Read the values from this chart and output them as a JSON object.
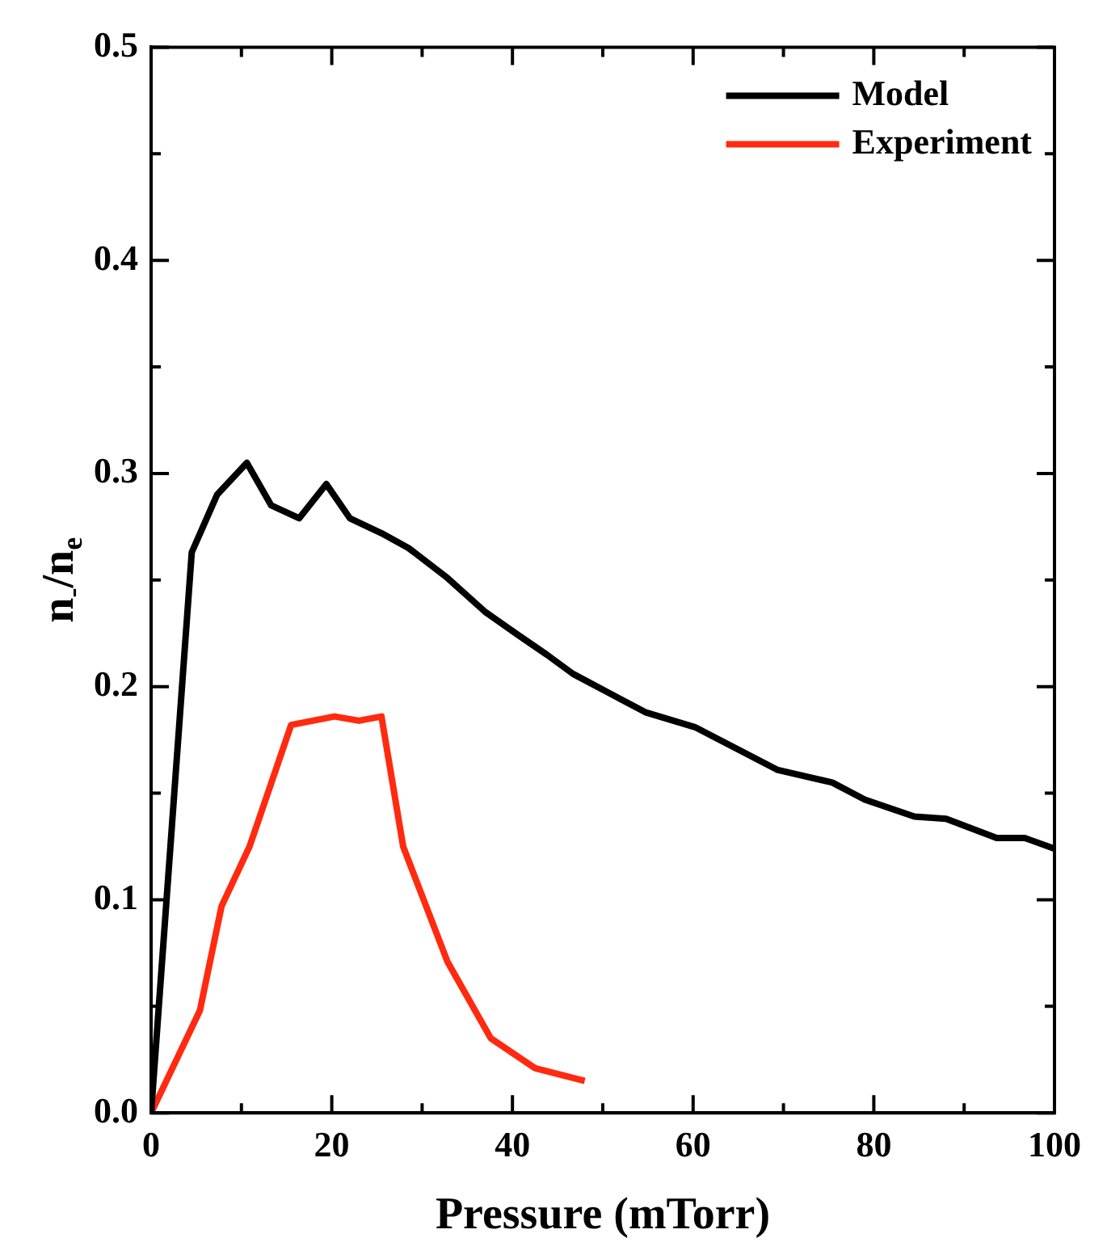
{
  "chart_data": {
    "type": "line",
    "xlabel": "Pressure (mTorr)",
    "ylabel": "n$_{-}$/n$_{e}$",
    "xlim": [
      0,
      100
    ],
    "xticks": [
      0,
      {
        "value": 10,
        "label": null
      },
      20,
      {
        "value": 30,
        "label": null
      },
      40,
      {
        "value": 50,
        "label": null
      },
      60,
      {
        "value": 70,
        "label": null
      },
      80,
      {
        "value": 90,
        "label": null
      },
      100
    ],
    "ylim": [
      0,
      0.5
    ],
    "yticks": [
      {
        "value": 0,
        "label": "0.0"
      },
      {
        "value": 0.05,
        "label": null
      },
      0.1,
      {
        "value": 0.15,
        "label": null
      },
      0.2,
      {
        "value": 0.25,
        "label": null
      },
      0.3,
      {
        "value": 0.35,
        "label": null
      },
      0.4,
      {
        "value": 0.45,
        "label": null
      },
      0.5
    ],
    "legend": "top right",
    "marker": "none",
    "line_style": "solid",
    "series": [
      {
        "name": "Model",
        "color": "#000000",
        "x": [
          0,
          4.5,
          7.3,
          10.6,
          13.3,
          16.4,
          19.4,
          22,
          25.5,
          28.5,
          32.8,
          37,
          40.7,
          43.8,
          46.7,
          49.8,
          54.7,
          60.2,
          69.3,
          75.4,
          79,
          84.5,
          88,
          93.6,
          96.7,
          100
        ],
        "values": [
          0,
          0.263,
          0.29,
          0.305,
          0.285,
          0.279,
          0.295,
          0.279,
          0.272,
          0.265,
          0.251,
          0.235,
          0.224,
          0.215,
          0.206,
          0.199,
          0.188,
          0.181,
          0.161,
          0.155,
          0.147,
          0.139,
          0.138,
          0.129,
          0.129,
          0.124
        ]
      },
      {
        "name": "Experiment",
        "color": "#ff2a10",
        "x": [
          0,
          5.4,
          7.8,
          10.9,
          15.5,
          20.3,
          23,
          25.5,
          27.9,
          32.8,
          37.6,
          42.5,
          48
        ],
        "values": [
          0,
          0.048,
          0.097,
          0.125,
          0.182,
          0.186,
          0.184,
          0.186,
          0.125,
          0.071,
          0.035,
          0.021,
          0.015
        ]
      }
    ]
  }
}
